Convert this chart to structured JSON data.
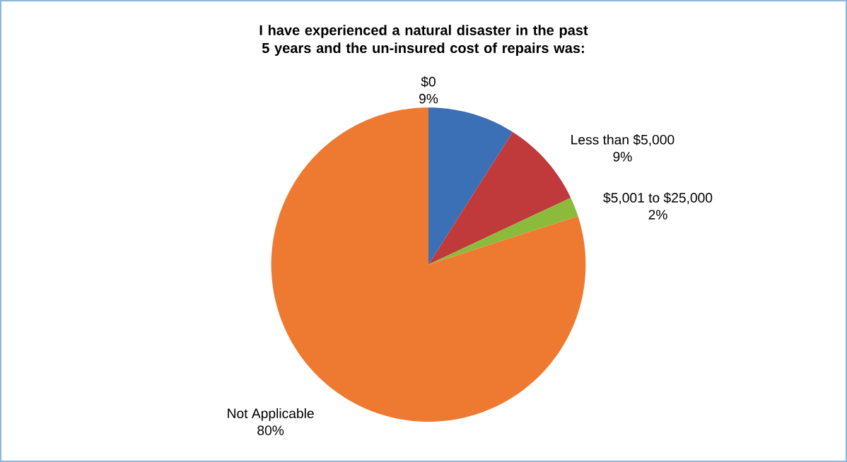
{
  "chart_data": {
    "type": "pie",
    "title": "I have experienced a natural disaster in the past 5 years and the un-insured cost of repairs was:",
    "categories": [
      "$0",
      "Less than $5,000",
      "$5,001 to $25,000",
      "Not Applicable"
    ],
    "values": [
      9,
      9,
      2,
      80
    ],
    "value_labels": [
      "9%",
      "9%",
      "2%",
      "80%"
    ],
    "colors": [
      "#3b6fb6",
      "#c0393b",
      "#8cbb3c",
      "#ee7a32"
    ]
  }
}
